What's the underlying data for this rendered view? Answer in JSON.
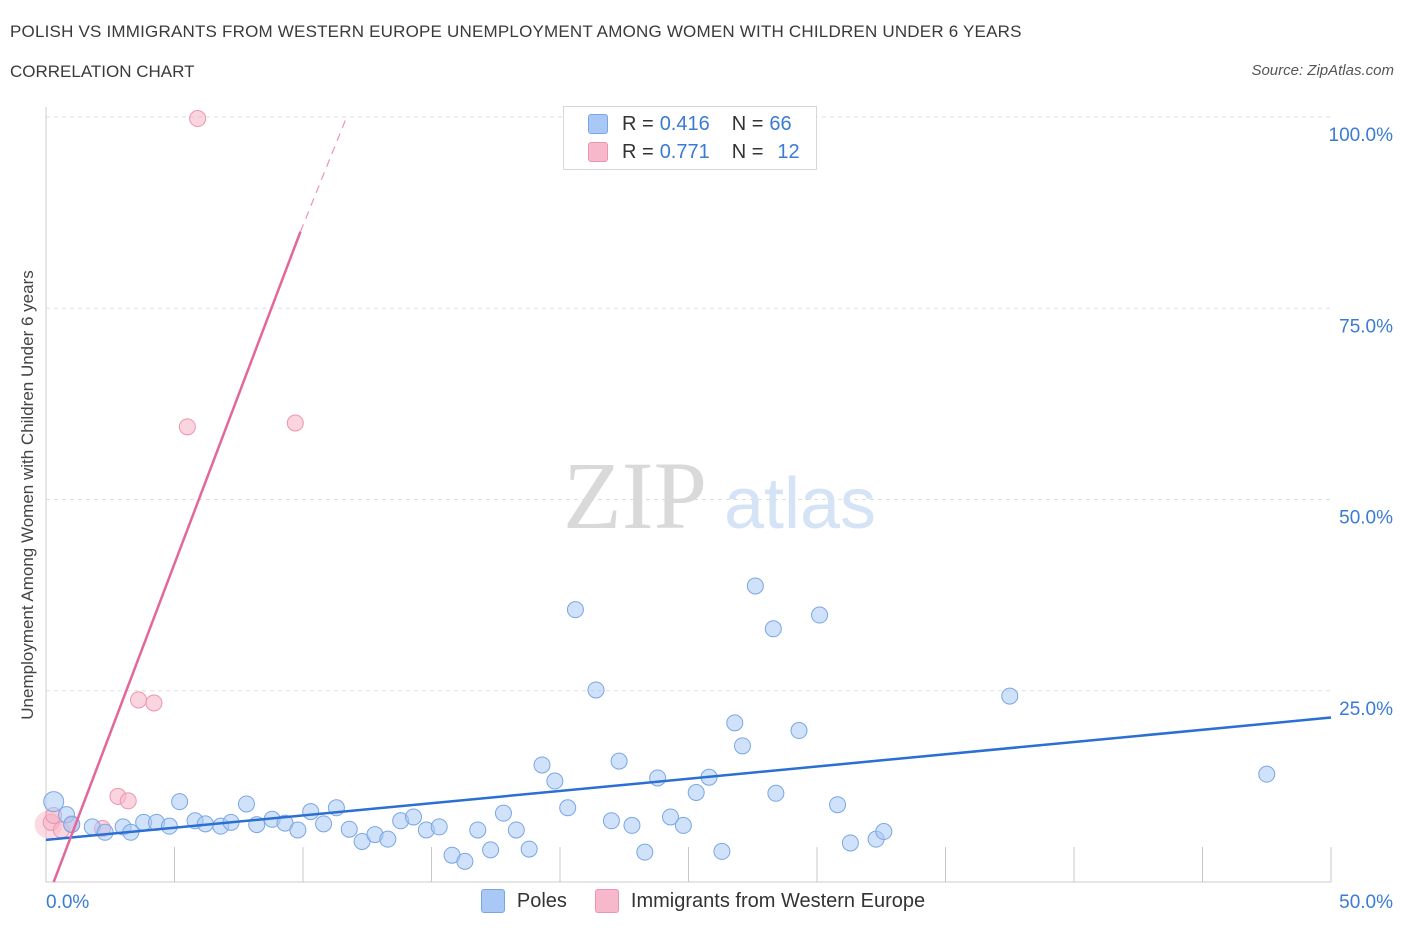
{
  "header": {
    "title": "POLISH VS IMMIGRANTS FROM WESTERN EUROPE UNEMPLOYMENT AMONG WOMEN WITH CHILDREN UNDER 6 YEARS",
    "subtitle": "CORRELATION CHART",
    "source": "Source: ZipAtlas.com"
  },
  "watermark": {
    "zip": "ZIP",
    "atlas": "atlas"
  },
  "legend": {
    "rows": [
      {
        "r_label": "R = ",
        "r_value": "0.416",
        "n_label": "N = ",
        "n_value": "66",
        "color": "#a9c8f5"
      },
      {
        "r_label": "R = ",
        "r_value": "0.771",
        "n_label": "N = ",
        "n_value": "12",
        "color": "#f6b8ca"
      }
    ]
  },
  "bottom_legend": [
    {
      "label": "Poles",
      "color": "#a9c8f5"
    },
    {
      "label": "Immigrants from Western Europe",
      "color": "#f6b8ca"
    }
  ],
  "colors": {
    "poles_fill": "#a9c8f5",
    "poles_stroke": "#7aa6e3",
    "poles_line": "#2a6fd1",
    "immigrants_fill": "#f6b8ca",
    "immigrants_stroke": "#ee94b0",
    "immigrants_line": "#e2679a",
    "tick_text": "#3a7bd5",
    "grid": "#dddddd"
  },
  "chart_data": {
    "type": "scatter",
    "title": "POLISH VS IMMIGRANTS FROM WESTERN EUROPE UNEMPLOYMENT AMONG WOMEN WITH CHILDREN UNDER 6 YEARS",
    "subtitle": "CORRELATION CHART",
    "xlabel": "",
    "ylabel": "Unemployment Among Women with Children Under 6 years",
    "xlim": [
      0,
      50
    ],
    "ylim": [
      0,
      100
    ],
    "x_tick_labels": [
      "0.0%",
      "50.0%"
    ],
    "y_tick_labels": [
      "100.0%",
      "75.0%",
      "50.0%",
      "25.0%"
    ],
    "y_ticks": [
      100,
      75,
      50,
      25
    ],
    "grid": true,
    "legend_position": "top-center",
    "series": [
      {
        "name": "Poles",
        "R": 0.416,
        "N": 66,
        "trend": {
          "x": [
            0,
            50
          ],
          "y": [
            5.5,
            21.5
          ]
        },
        "points": [
          [
            0.3,
            10.5
          ],
          [
            0.8,
            8.8
          ],
          [
            1.0,
            7.5
          ],
          [
            1.8,
            7.2
          ],
          [
            2.3,
            6.5
          ],
          [
            3.0,
            7.2
          ],
          [
            3.3,
            6.5
          ],
          [
            3.8,
            7.8
          ],
          [
            4.3,
            7.8
          ],
          [
            4.8,
            7.3
          ],
          [
            5.2,
            10.5
          ],
          [
            5.8,
            8.0
          ],
          [
            6.2,
            7.6
          ],
          [
            6.8,
            7.3
          ],
          [
            7.2,
            7.8
          ],
          [
            7.8,
            10.2
          ],
          [
            8.2,
            7.5
          ],
          [
            8.8,
            8.2
          ],
          [
            9.3,
            7.7
          ],
          [
            9.8,
            6.8
          ],
          [
            10.3,
            9.2
          ],
          [
            10.8,
            7.6
          ],
          [
            11.3,
            9.7
          ],
          [
            11.8,
            6.9
          ],
          [
            12.3,
            5.3
          ],
          [
            12.8,
            6.2
          ],
          [
            13.3,
            5.6
          ],
          [
            13.8,
            8.0
          ],
          [
            14.3,
            8.5
          ],
          [
            14.8,
            6.8
          ],
          [
            15.3,
            7.2
          ],
          [
            15.8,
            3.5
          ],
          [
            16.3,
            2.7
          ],
          [
            16.8,
            6.8
          ],
          [
            17.3,
            4.2
          ],
          [
            17.8,
            9.0
          ],
          [
            18.3,
            6.8
          ],
          [
            18.8,
            4.3
          ],
          [
            19.3,
            15.3
          ],
          [
            19.8,
            13.2
          ],
          [
            20.3,
            9.7
          ],
          [
            20.6,
            35.6
          ],
          [
            21.4,
            25.1
          ],
          [
            22.0,
            8.0
          ],
          [
            22.3,
            15.8
          ],
          [
            22.8,
            7.4
          ],
          [
            23.3,
            3.9
          ],
          [
            23.8,
            13.6
          ],
          [
            24.3,
            8.5
          ],
          [
            24.8,
            7.4
          ],
          [
            25.3,
            11.7
          ],
          [
            25.8,
            13.7
          ],
          [
            26.3,
            4.0
          ],
          [
            26.8,
            20.8
          ],
          [
            27.1,
            17.8
          ],
          [
            27.6,
            38.7
          ],
          [
            28.3,
            33.1
          ],
          [
            28.4,
            11.6
          ],
          [
            29.3,
            19.8
          ],
          [
            30.1,
            34.9
          ],
          [
            30.8,
            10.1
          ],
          [
            31.3,
            5.1
          ],
          [
            32.3,
            5.6
          ],
          [
            32.6,
            6.6
          ],
          [
            37.5,
            24.3
          ],
          [
            47.5,
            14.1
          ]
        ]
      },
      {
        "name": "Immigrants from Western Europe",
        "R": 0.771,
        "N": 12,
        "trend": {
          "x": [
            0.3,
            9.9
          ],
          "y": [
            0,
            85
          ]
        },
        "trend_dashed": {
          "x": [
            9.9,
            11.7
          ],
          "y": [
            85,
            100
          ]
        },
        "points": [
          [
            0.2,
            7.8
          ],
          [
            0.6,
            6.8
          ],
          [
            1.0,
            7.6
          ],
          [
            2.2,
            7.0
          ],
          [
            2.8,
            11.2
          ],
          [
            3.2,
            10.6
          ],
          [
            3.6,
            23.8
          ],
          [
            4.2,
            23.4
          ],
          [
            5.5,
            59.5
          ],
          [
            5.9,
            99.8
          ],
          [
            9.7,
            60.0
          ],
          [
            0.3,
            8.7
          ]
        ]
      }
    ]
  }
}
